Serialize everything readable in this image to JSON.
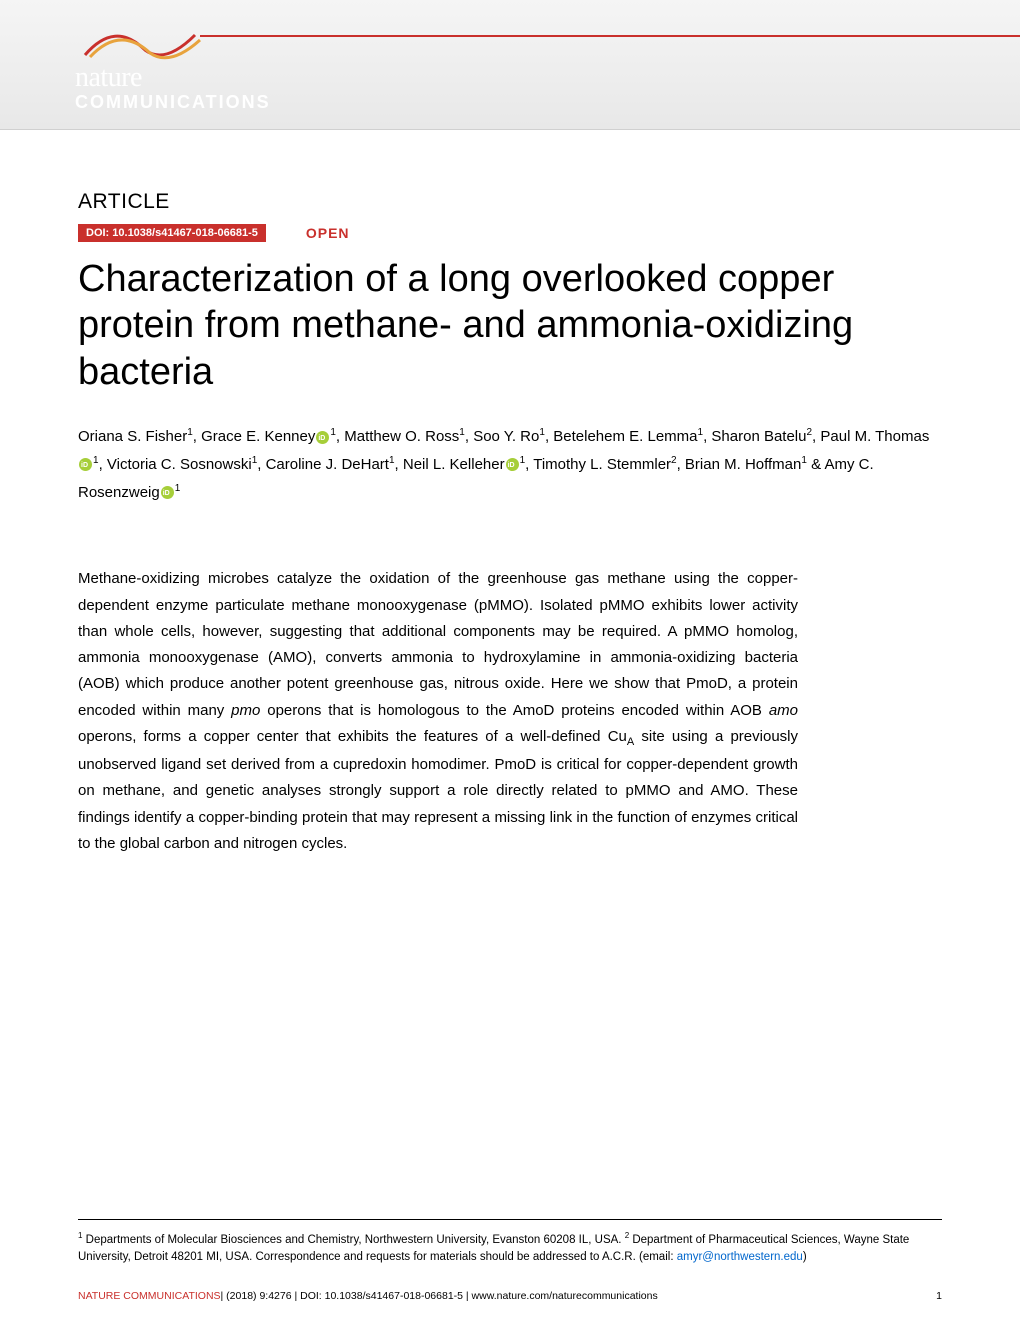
{
  "header": {
    "logo_nature": "nature",
    "logo_communications": "COMMUNICATIONS",
    "swoosh_colors": [
      "#c9302c",
      "#e8a33d"
    ],
    "header_bg_top": "#f5f5f5",
    "header_bg_bottom": "#e8e8e8"
  },
  "article": {
    "section_label": "ARTICLE",
    "doi": "DOI: 10.1038/s41467-018-06681-5",
    "open_label": "OPEN",
    "title": "Characterization of a long overlooked copper protein from methane- and ammonia-oxidizing bacteria",
    "authors_html": "Oriana S. Fisher<sup>1</sup>, Grace E. Kenney{ORCID}<sup>1</sup>, Matthew O. Ross<sup>1</sup>, Soo Y. Ro<sup>1</sup>, Betelehem E. Lemma<sup>1</sup>, Sharon Batelu<sup>2</sup>, Paul M. Thomas{ORCID}<sup>1</sup>, Victoria C. Sosnowski<sup>1</sup>, Caroline J. DeHart<sup>1</sup>, Neil L. Kelleher{ORCID}<sup>1</sup>, Timothy L. Stemmler<sup>2</sup>, Brian M. Hoffman<sup>1</sup> & Amy C. Rosenzweig{ORCID}<sup>1</sup>",
    "abstract_html": "Methane-oxidizing microbes catalyze the oxidation of the greenhouse gas methane using the copper-dependent enzyme particulate methane monooxygenase (pMMO). Isolated pMMO exhibits lower activity than whole cells, however, suggesting that additional components may be required. A pMMO homolog, ammonia monooxygenase (AMO), converts ammonia to hydroxylamine in ammonia-oxidizing bacteria (AOB) which produce another potent greenhouse gas, nitrous oxide. Here we show that PmoD, a protein encoded within many <em>pmo</em> operons that is homologous to the AmoD proteins encoded within AOB <em>amo</em> operons, forms a copper center that exhibits the features of a well-defined Cu<sub>A</sub> site using a previously unobserved ligand set derived from a cupredoxin homodimer. PmoD is critical for copper-dependent growth on methane, and genetic analyses strongly support a role directly related to pMMO and AMO. These findings identify a copper-binding protein that may represent a missing link in the function of enzymes critical to the global carbon and nitrogen cycles."
  },
  "affiliations": {
    "text_html": "<sup>1</sup> Departments of Molecular Biosciences and Chemistry, Northwestern University, Evanston 60208 IL, USA. <sup>2</sup> Department of Pharmaceutical Sciences, Wayne State University, Detroit 48201 MI, USA. Correspondence and requests for materials should be addressed to A.C.R. (email: ",
    "email": "amyr@northwestern.edu",
    "closing": ")"
  },
  "footer": {
    "journal": "NATURE COMMUNICATIONS",
    "citation": "|   (2018) 9:4276  | DOI: 10.1038/s41467-018-06681-5 | www.nature.com/naturecommunications",
    "page": "1"
  },
  "colors": {
    "accent_red": "#c9302c",
    "orcid_green": "#a6ce39",
    "link_blue": "#0066cc",
    "text_black": "#000000",
    "bg_white": "#ffffff"
  },
  "typography": {
    "title_fontsize": 38,
    "body_fontsize": 15,
    "section_label_fontsize": 21,
    "doi_fontsize": 11,
    "affil_fontsize": 11.5,
    "footer_fontsize": 10.5
  }
}
